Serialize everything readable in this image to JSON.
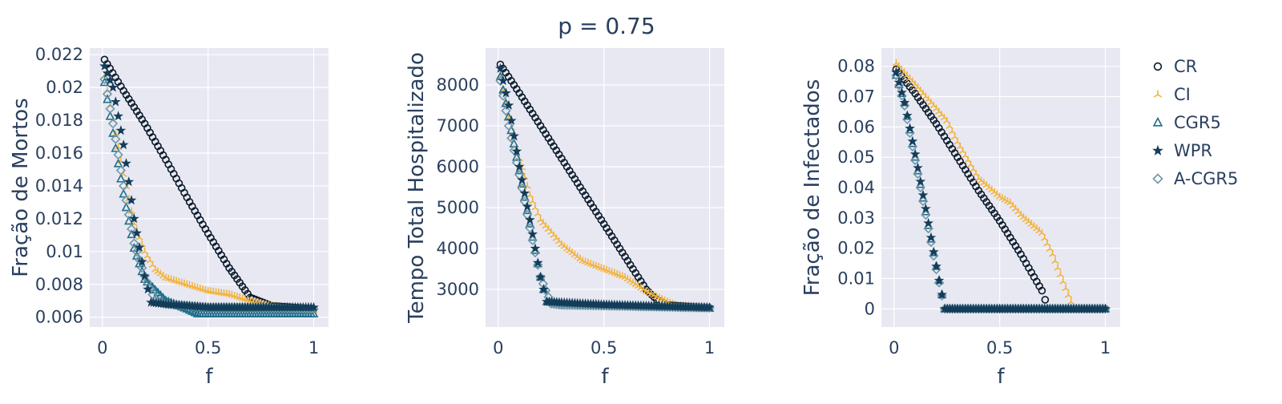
{
  "title": "p = 0.75",
  "legend": [
    {
      "name": "CR",
      "symbol": "circle",
      "color": "#0a1a2a"
    },
    {
      "name": "CI",
      "symbol": "y-up",
      "color": "#f2b33d"
    },
    {
      "name": "CGR5",
      "symbol": "triangle",
      "color": "#1f6f8b"
    },
    {
      "name": "WPR",
      "symbol": "star",
      "color": "#143d59"
    },
    {
      "name": "A-CGR5",
      "symbol": "diamond",
      "color": "#6e97a8"
    }
  ],
  "chart_data": [
    {
      "type": "scatter",
      "title": "",
      "xlabel": "f",
      "ylabel": "Fração de Mortos",
      "xlim": [
        -0.06,
        1.07
      ],
      "ylim": [
        0.0054,
        0.0224
      ],
      "xticks": [
        {
          "v": 0,
          "label": "0"
        },
        {
          "v": 0.5,
          "label": "0.5"
        },
        {
          "v": 1,
          "label": "1"
        }
      ],
      "yticks": [
        {
          "v": 0.006,
          "label": "0.006"
        },
        {
          "v": 0.008,
          "label": "0.008"
        },
        {
          "v": 0.01,
          "label": "0.01"
        },
        {
          "v": 0.012,
          "label": "0.012"
        },
        {
          "v": 0.014,
          "label": "0.014"
        },
        {
          "v": 0.016,
          "label": "0.016"
        },
        {
          "v": 0.018,
          "label": "0.018"
        },
        {
          "v": 0.02,
          "label": "0.02"
        },
        {
          "v": 0.022,
          "label": "0.022"
        }
      ],
      "grid": true,
      "series": [
        {
          "name": "CR",
          "points": [
            [
              0.01,
              0.0217
            ],
            [
              0.1,
              0.0198
            ],
            [
              0.2,
              0.0178
            ],
            [
              0.3,
              0.0156
            ],
            [
              0.4,
              0.0133
            ],
            [
              0.5,
              0.0111
            ],
            [
              0.6,
              0.009
            ],
            [
              0.7,
              0.0072
            ],
            [
              0.8,
              0.0067
            ],
            [
              0.9,
              0.0066
            ],
            [
              1.0,
              0.0065
            ]
          ]
        },
        {
          "name": "CI",
          "points": [
            [
              0.01,
              0.0207
            ],
            [
              0.05,
              0.018
            ],
            [
              0.1,
              0.0147
            ],
            [
              0.15,
              0.0117
            ],
            [
              0.2,
              0.01
            ],
            [
              0.25,
              0.0089
            ],
            [
              0.3,
              0.0084
            ],
            [
              0.4,
              0.008
            ],
            [
              0.5,
              0.0076
            ],
            [
              0.6,
              0.0074
            ],
            [
              0.7,
              0.007
            ],
            [
              0.8,
              0.0067
            ],
            [
              0.9,
              0.0065
            ],
            [
              1.0,
              0.0064
            ]
          ]
        },
        {
          "name": "CGR5",
          "points": [
            [
              0.01,
              0.0203
            ],
            [
              0.05,
              0.0172
            ],
            [
              0.1,
              0.0135
            ],
            [
              0.15,
              0.0102
            ],
            [
              0.2,
              0.0083
            ],
            [
              0.3,
              0.007
            ],
            [
              0.4,
              0.0065
            ],
            [
              0.45,
              0.0062
            ],
            [
              0.5,
              0.0062
            ],
            [
              0.7,
              0.0062
            ],
            [
              1.0,
              0.0062
            ]
          ]
        },
        {
          "name": "WPR",
          "points": [
            [
              0.01,
              0.0213
            ],
            [
              0.05,
              0.02
            ],
            [
              0.1,
              0.0165
            ],
            [
              0.15,
              0.012
            ],
            [
              0.2,
              0.0085
            ],
            [
              0.23,
              0.0069
            ],
            [
              0.3,
              0.0068
            ],
            [
              0.5,
              0.0066
            ],
            [
              0.7,
              0.0066
            ],
            [
              1.0,
              0.0066
            ]
          ]
        },
        {
          "name": "A-CGR5",
          "points": [
            [
              0.01,
              0.0205
            ],
            [
              0.05,
              0.0178
            ],
            [
              0.1,
              0.014
            ],
            [
              0.15,
              0.0105
            ],
            [
              0.2,
              0.0085
            ],
            [
              0.25,
              0.007
            ],
            [
              0.3,
              0.0068
            ],
            [
              0.5,
              0.0066
            ],
            [
              0.7,
              0.0066
            ],
            [
              1.0,
              0.0065
            ]
          ]
        }
      ]
    },
    {
      "type": "scatter",
      "title": "",
      "xlabel": "f",
      "ylabel": "Tempo Total Hospitalizado",
      "xlim": [
        -0.06,
        1.07
      ],
      "ylim": [
        2080,
        8900
      ],
      "xticks": [
        {
          "v": 0,
          "label": "0"
        },
        {
          "v": 0.5,
          "label": "0.5"
        },
        {
          "v": 1,
          "label": "1"
        }
      ],
      "yticks": [
        {
          "v": 3000,
          "label": "3000"
        },
        {
          "v": 4000,
          "label": "4000"
        },
        {
          "v": 5000,
          "label": "5000"
        },
        {
          "v": 6000,
          "label": "6000"
        },
        {
          "v": 7000,
          "label": "7000"
        },
        {
          "v": 8000,
          "label": "8000"
        }
      ],
      "grid": true,
      "series": [
        {
          "name": "CR",
          "points": [
            [
              0.01,
              8500
            ],
            [
              0.1,
              7800
            ],
            [
              0.2,
              7000
            ],
            [
              0.3,
              6200
            ],
            [
              0.4,
              5400
            ],
            [
              0.5,
              4600
            ],
            [
              0.6,
              3800
            ],
            [
              0.7,
              3000
            ],
            [
              0.75,
              2750
            ],
            [
              0.8,
              2620
            ],
            [
              0.9,
              2580
            ],
            [
              1.0,
              2550
            ]
          ]
        },
        {
          "name": "CI",
          "points": [
            [
              0.01,
              8200
            ],
            [
              0.05,
              7200
            ],
            [
              0.1,
              6200
            ],
            [
              0.15,
              5300
            ],
            [
              0.2,
              4700
            ],
            [
              0.3,
              4100
            ],
            [
              0.4,
              3700
            ],
            [
              0.5,
              3500
            ],
            [
              0.6,
              3300
            ],
            [
              0.7,
              2950
            ],
            [
              0.8,
              2700
            ],
            [
              0.85,
              2600
            ],
            [
              0.9,
              2580
            ],
            [
              1.0,
              2560
            ]
          ]
        },
        {
          "name": "CGR5",
          "points": [
            [
              0.01,
              8200
            ],
            [
              0.1,
              5900
            ],
            [
              0.15,
              4600
            ],
            [
              0.2,
              3300
            ],
            [
              0.23,
              2700
            ],
            [
              0.3,
              2650
            ],
            [
              0.5,
              2600
            ],
            [
              0.7,
              2570
            ],
            [
              1.0,
              2540
            ]
          ]
        },
        {
          "name": "WPR",
          "points": [
            [
              0.01,
              8400
            ],
            [
              0.05,
              7500
            ],
            [
              0.1,
              6000
            ],
            [
              0.15,
              4700
            ],
            [
              0.2,
              3300
            ],
            [
              0.23,
              2700
            ],
            [
              0.3,
              2680
            ],
            [
              0.5,
              2630
            ],
            [
              0.7,
              2600
            ],
            [
              1.0,
              2560
            ]
          ]
        },
        {
          "name": "A-CGR5",
          "points": [
            [
              0.01,
              8100
            ],
            [
              0.05,
              7000
            ],
            [
              0.1,
              5800
            ],
            [
              0.15,
              4500
            ],
            [
              0.2,
              3300
            ],
            [
              0.25,
              2650
            ],
            [
              0.3,
              2620
            ],
            [
              0.5,
              2600
            ],
            [
              0.7,
              2580
            ],
            [
              1.0,
              2550
            ]
          ]
        }
      ]
    },
    {
      "type": "scatter",
      "title": "",
      "xlabel": "f",
      "ylabel": "Fração de Infectados",
      "xlim": [
        -0.06,
        1.07
      ],
      "ylim": [
        -0.006,
        0.086
      ],
      "xticks": [
        {
          "v": 0,
          "label": "0"
        },
        {
          "v": 0.5,
          "label": "0.5"
        },
        {
          "v": 1,
          "label": "1"
        }
      ],
      "yticks": [
        {
          "v": 0,
          "label": "0"
        },
        {
          "v": 0.01,
          "label": "0.01"
        },
        {
          "v": 0.02,
          "label": "0.02"
        },
        {
          "v": 0.03,
          "label": "0.03"
        },
        {
          "v": 0.04,
          "label": "0.04"
        },
        {
          "v": 0.05,
          "label": "0.05"
        },
        {
          "v": 0.06,
          "label": "0.06"
        },
        {
          "v": 0.07,
          "label": "0.07"
        },
        {
          "v": 0.08,
          "label": "0.08"
        }
      ],
      "grid": true,
      "series": [
        {
          "name": "CR",
          "points": [
            [
              0.01,
              0.079
            ],
            [
              0.1,
              0.071
            ],
            [
              0.2,
              0.061
            ],
            [
              0.3,
              0.05
            ],
            [
              0.4,
              0.039
            ],
            [
              0.5,
              0.029
            ],
            [
              0.6,
              0.018
            ],
            [
              0.7,
              0.006
            ],
            [
              0.73,
              0.0
            ],
            [
              0.8,
              0.0
            ],
            [
              1.0,
              0.0
            ]
          ]
        },
        {
          "name": "CI",
          "points": [
            [
              0.01,
              0.081
            ],
            [
              0.1,
              0.074
            ],
            [
              0.2,
              0.066
            ],
            [
              0.25,
              0.062
            ],
            [
              0.3,
              0.055
            ],
            [
              0.4,
              0.043
            ],
            [
              0.5,
              0.037
            ],
            [
              0.55,
              0.035
            ],
            [
              0.6,
              0.031
            ],
            [
              0.7,
              0.025
            ],
            [
              0.75,
              0.018
            ],
            [
              0.8,
              0.009
            ],
            [
              0.85,
              0.0
            ],
            [
              0.9,
              0.0
            ],
            [
              1.0,
              0.0
            ]
          ]
        },
        {
          "name": "CGR5",
          "points": [
            [
              0.01,
              0.077
            ],
            [
              0.05,
              0.068
            ],
            [
              0.1,
              0.05
            ],
            [
              0.15,
              0.032
            ],
            [
              0.2,
              0.014
            ],
            [
              0.24,
              0.0
            ],
            [
              0.3,
              0.0
            ],
            [
              0.5,
              0.0
            ],
            [
              1.0,
              0.0
            ]
          ]
        },
        {
          "name": "WPR",
          "points": [
            [
              0.01,
              0.078
            ],
            [
              0.05,
              0.068
            ],
            [
              0.1,
              0.051
            ],
            [
              0.15,
              0.033
            ],
            [
              0.2,
              0.014
            ],
            [
              0.24,
              0.0
            ],
            [
              0.3,
              0.0
            ],
            [
              0.5,
              0.0
            ],
            [
              1.0,
              0.0
            ]
          ]
        },
        {
          "name": "A-CGR5",
          "points": [
            [
              0.01,
              0.077
            ],
            [
              0.05,
              0.067
            ],
            [
              0.1,
              0.049
            ],
            [
              0.15,
              0.031
            ],
            [
              0.2,
              0.013
            ],
            [
              0.24,
              0.0
            ],
            [
              0.3,
              0.0
            ],
            [
              0.5,
              0.0
            ],
            [
              1.0,
              0.0
            ]
          ]
        }
      ]
    }
  ]
}
